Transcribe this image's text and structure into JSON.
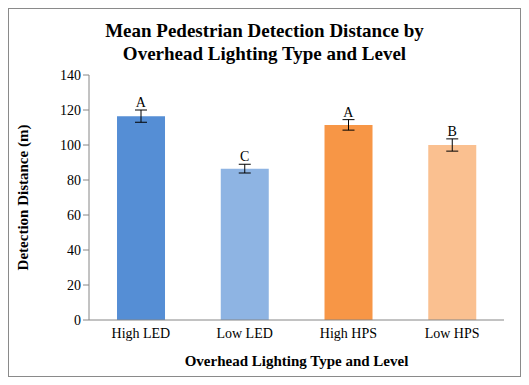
{
  "chart_data": {
    "type": "bar",
    "title": "Mean Pedestrian Detection Distance by Overhead Lighting Type and Level",
    "x_label": "Overhead Lighting Type and Level",
    "y_label": "Detection Distance (m)",
    "categories": [
      "High LED",
      "Low LED",
      "High HPS",
      "Low HPS"
    ],
    "values": [
      116.5,
      86.5,
      111.5,
      100
    ],
    "errors": [
      3.5,
      2.5,
      3,
      3.5
    ],
    "annotations": [
      "A",
      "C",
      "A",
      "B"
    ],
    "colors": [
      "#558ED5",
      "#8EB4E3",
      "#F79646",
      "#FAC090"
    ],
    "ylim": [
      0,
      140
    ],
    "yticks": [
      0,
      20,
      40,
      60,
      80,
      100,
      120,
      140
    ],
    "grid": false
  }
}
